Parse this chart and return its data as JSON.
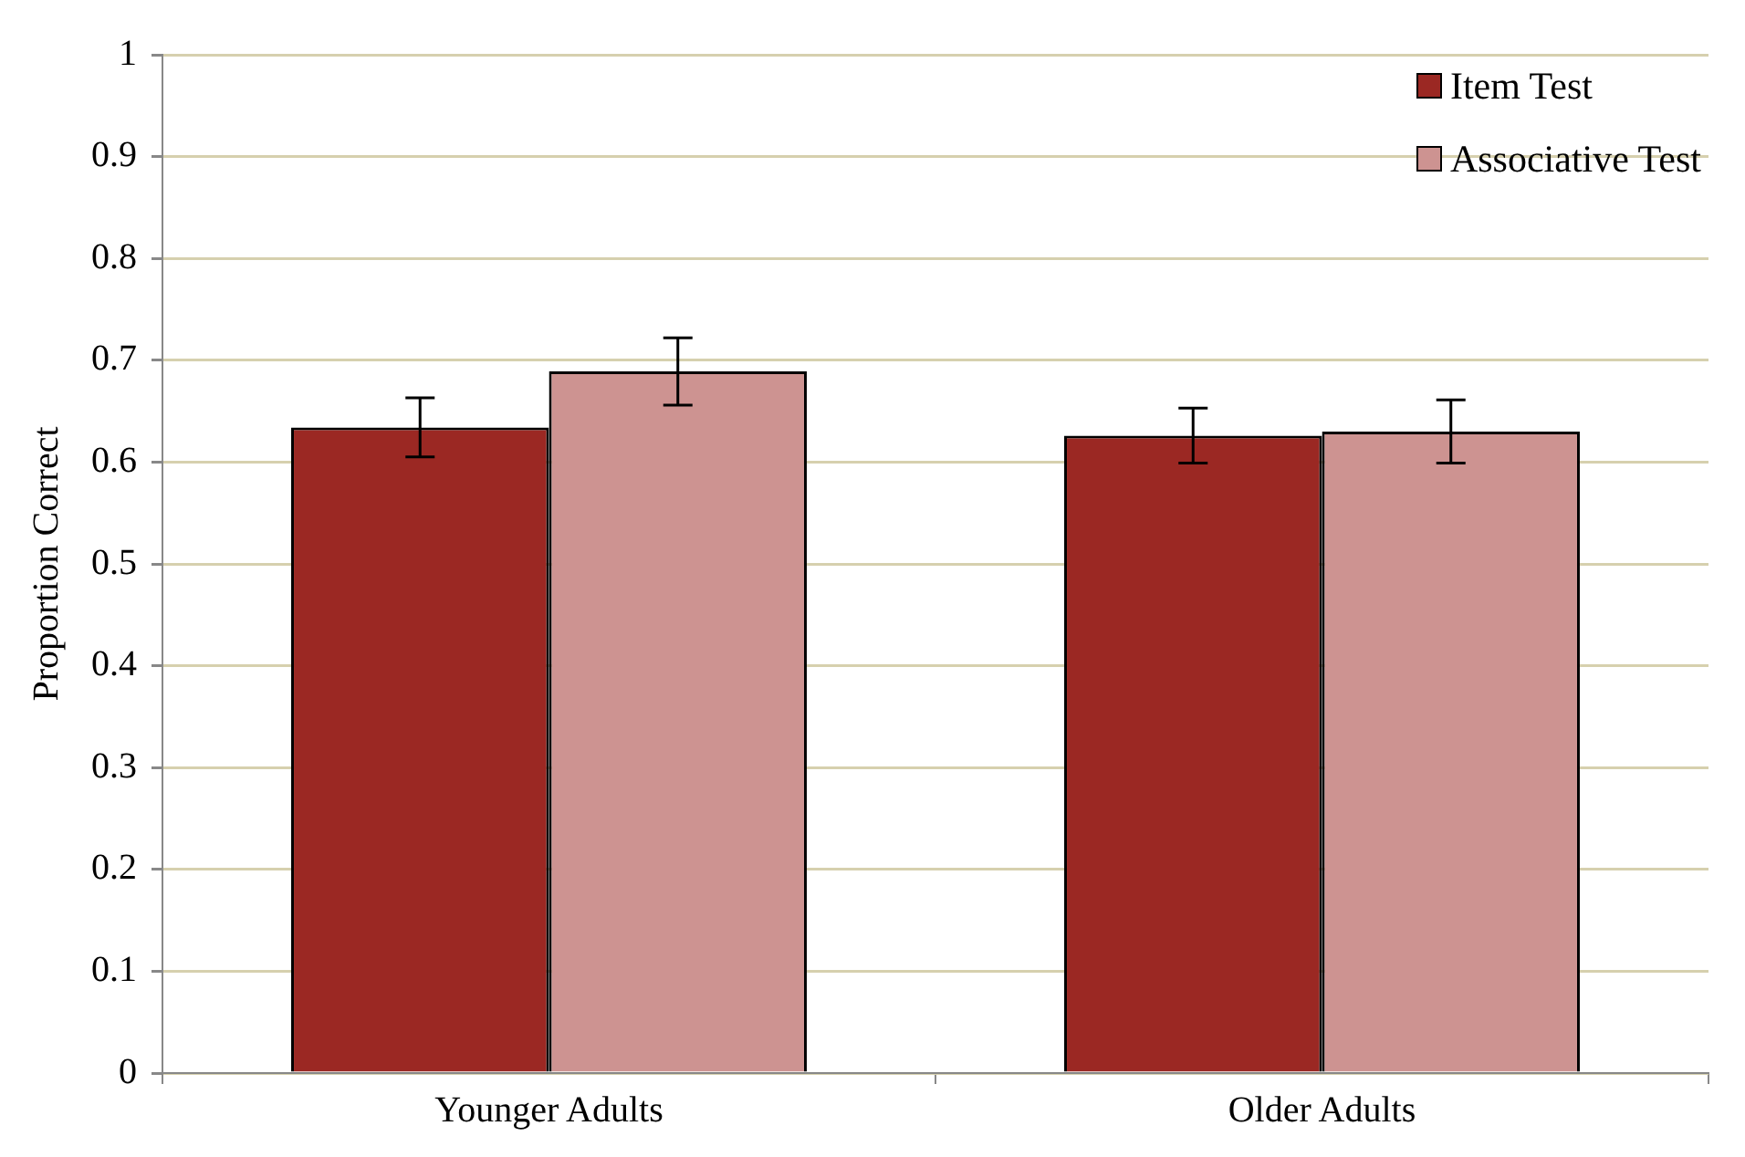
{
  "chart_data": {
    "type": "bar",
    "ylabel": "Proportion Correct",
    "categories": [
      "Younger Adults",
      "Older Adults"
    ],
    "series": [
      {
        "name": "Item Test",
        "color": "#9b2823",
        "values": [
          0.634,
          0.626
        ],
        "errors": [
          0.029,
          0.027
        ]
      },
      {
        "name": "Associative Test",
        "color": "#cd9391",
        "values": [
          0.689,
          0.63
        ],
        "errors": [
          0.033,
          0.031
        ]
      }
    ],
    "ylim": [
      0,
      1
    ],
    "yticks": [
      0,
      0.1,
      0.2,
      0.3,
      0.4,
      0.5,
      0.6,
      0.7,
      0.8,
      0.9,
      1
    ],
    "grid": "y",
    "legend": "top right"
  }
}
